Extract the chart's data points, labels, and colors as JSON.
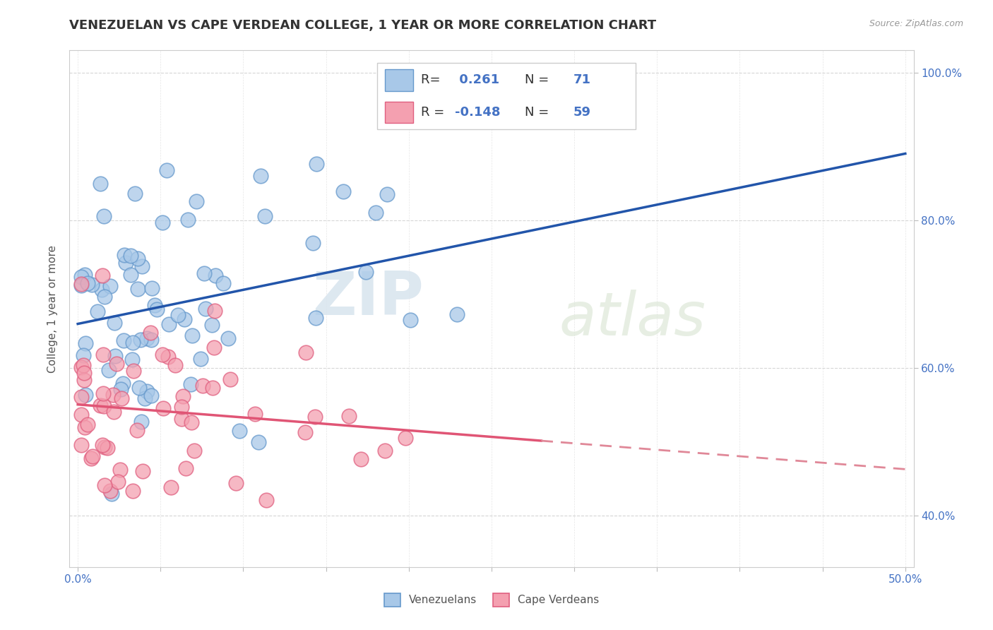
{
  "title": "VENEZUELAN VS CAPE VERDEAN COLLEGE, 1 YEAR OR MORE CORRELATION CHART",
  "source_text": "Source: ZipAtlas.com",
  "ylabel": "College, 1 year or more",
  "xlim": [
    0.0,
    0.5
  ],
  "ylim": [
    0.33,
    1.03
  ],
  "blue_R": 0.261,
  "blue_N": 71,
  "pink_R": -0.148,
  "pink_N": 59,
  "blue_color": "#a8c8e8",
  "pink_color": "#f4a0b0",
  "blue_edge_color": "#6699cc",
  "pink_edge_color": "#e06080",
  "blue_line_color": "#2255aa",
  "pink_line_solid_color": "#e05575",
  "pink_line_dash_color": "#e08898",
  "legend_label_blue": "Venezuelans",
  "legend_label_pink": "Cape Verdeans",
  "watermark_zip": "ZIP",
  "watermark_atlas": "atlas",
  "tick_color": "#4472c4",
  "grid_color": "#cccccc"
}
